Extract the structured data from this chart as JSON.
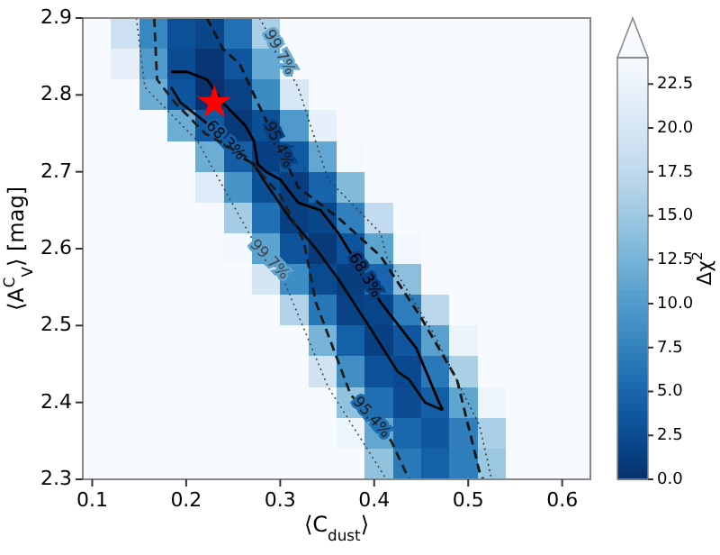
{
  "chart_data": {
    "type": "heatmap",
    "xlabel": "⟨C$_{dust}$⟩",
    "ylabel": "⟨A$^{C}$$_{V}$⟩ [mag]",
    "clabel": "Δχ$^{2}$",
    "xlim": [
      0.09,
      0.63
    ],
    "xticks": [
      0.1,
      0.2,
      0.3,
      0.4,
      0.5,
      0.6
    ],
    "ylim": [
      2.3,
      2.9
    ],
    "yticks": [
      2.3,
      2.4,
      2.5,
      2.6,
      2.7,
      2.8,
      2.9
    ],
    "clim": [
      0,
      24
    ],
    "cticks": [
      {
        "value": 0,
        "label": "0.0"
      },
      2.5,
      {
        "value": 5,
        "label": "5.0"
      },
      7.5,
      {
        "value": 10,
        "label": "10.0"
      },
      12.5,
      {
        "value": 15,
        "label": "15.0"
      },
      17.5,
      {
        "value": 20,
        "label": "20.0"
      },
      22.5
    ],
    "cells": [
      [
        24,
        19,
        8,
        3,
        2,
        6,
        16,
        24,
        24,
        24,
        24,
        24,
        24,
        24,
        24,
        24,
        24,
        24
      ],
      [
        24,
        22,
        10,
        2.5,
        0.5,
        3.5,
        11.6,
        24,
        24,
        24,
        24,
        24,
        24,
        24,
        24,
        24,
        24,
        24
      ],
      [
        24,
        24,
        11.8,
        3.4,
        0.1,
        1.7,
        8.4,
        20.2,
        24,
        24,
        24,
        24,
        24,
        24,
        24,
        24,
        24,
        24
      ],
      [
        24,
        24,
        24,
        11.9,
        3.8,
        0.8,
        2.8,
        9.9,
        22,
        24,
        24,
        24,
        24,
        24,
        24,
        24,
        24,
        24
      ],
      [
        24,
        24,
        24,
        24,
        11.9,
        4.2,
        1.5,
        3.8,
        11.2,
        23.6,
        24,
        24,
        24,
        24,
        24,
        24,
        24,
        24
      ],
      [
        24,
        24,
        24,
        24,
        20.9,
        9.3,
        2.8,
        1.3,
        4.8,
        13.4,
        24,
        24,
        24,
        24,
        24,
        24,
        24,
        24
      ],
      [
        24,
        24,
        24,
        24,
        24,
        15.5,
        5.9,
        1.4,
        1.9,
        7.4,
        18,
        24,
        24,
        24,
        24,
        24,
        24,
        24
      ],
      [
        24,
        24,
        24,
        24,
        24,
        23.4,
        10.9,
        3.3,
        0.8,
        3.3,
        10.9,
        23.4,
        24,
        24,
        24,
        24,
        24,
        24
      ],
      [
        24,
        24,
        24,
        24,
        24,
        24,
        19.8,
        8.6,
        2.4,
        1.2,
        5,
        13.9,
        24,
        24,
        24,
        24,
        24,
        24
      ],
      [
        24,
        24,
        24,
        24,
        24,
        24,
        24,
        16.5,
        6.6,
        1.7,
        1.9,
        7.1,
        17.3,
        24,
        24,
        24,
        24,
        24
      ],
      [
        24,
        24,
        24,
        24,
        24,
        24,
        24,
        24,
        12.6,
        4.5,
        1.5,
        3.5,
        10.6,
        22.6,
        24,
        24,
        24,
        24
      ],
      [
        24,
        24,
        24,
        24,
        24,
        24,
        24,
        24,
        19.4,
        8.7,
        3,
        2.3,
        6.7,
        16.1,
        24,
        24,
        24,
        24
      ],
      [
        24,
        24,
        24,
        24,
        24,
        24,
        24,
        24,
        24,
        14.3,
        5.9,
        2.6,
        4.2,
        11,
        22.7,
        24,
        24,
        24
      ],
      [
        24,
        24,
        24,
        24,
        24,
        24,
        24,
        24,
        24,
        22.7,
        11.3,
        5,
        3.6,
        7.3,
        16,
        24,
        24,
        24
      ],
      [
        24,
        24,
        24,
        24,
        24,
        24,
        24,
        24,
        24,
        24,
        14.2,
        6.8,
        4.5,
        7.2,
        14.9,
        24,
        24,
        24
      ]
    ],
    "series": [
      {
        "name": "68.3%",
        "type": "line",
        "line_style": "solid",
        "color": "#000000",
        "x": [
          0.184,
          0.201,
          0.222,
          0.239,
          0.263,
          0.272,
          0.276,
          0.285,
          0.3,
          0.319,
          0.343,
          0.362,
          0.372,
          0.407,
          0.445,
          0.469,
          0.473
        ],
        "values": [
          2.83,
          2.83,
          2.82,
          2.79,
          2.76,
          2.74,
          2.71,
          2.7,
          2.69,
          2.66,
          2.65,
          2.62,
          2.6,
          2.53,
          2.47,
          2.4,
          2.39
        ]
      },
      {
        "name": "68.3%",
        "type": "line",
        "line_style": "solid",
        "color": "#0a0a0a",
        "x": [
          0.184,
          0.194,
          0.225,
          0.257,
          0.272,
          0.282,
          0.31,
          0.338,
          0.362,
          0.394,
          0.425,
          0.437,
          0.454,
          0.473
        ],
        "values": [
          2.81,
          2.79,
          2.76,
          2.72,
          2.71,
          2.69,
          2.64,
          2.6,
          2.56,
          2.5,
          2.44,
          2.43,
          2.4,
          2.39
        ]
      },
      {
        "name": "95.4%",
        "type": "line",
        "line_style": "dashed",
        "color": "#141414",
        "x": [
          0.222,
          0.239,
          0.257,
          0.276,
          0.319,
          0.362,
          0.407,
          0.45,
          0.488,
          0.512,
          0.516
        ],
        "values": [
          2.9,
          2.86,
          2.84,
          2.79,
          2.68,
          2.64,
          2.59,
          2.51,
          2.43,
          2.31,
          2.3
        ]
      },
      {
        "name": "95.4%",
        "type": "line",
        "line_style": "dashed",
        "color": "#1e1e1e",
        "x": [
          0.166,
          0.169,
          0.188,
          0.22,
          0.263,
          0.3,
          0.325,
          0.338,
          0.375,
          0.418,
          0.437
        ],
        "values": [
          2.9,
          2.82,
          2.79,
          2.75,
          2.72,
          2.67,
          2.61,
          2.53,
          2.41,
          2.35,
          2.3
        ]
      },
      {
        "name": "99.7%",
        "type": "line",
        "line_style": "dotted",
        "color": "#3c3c3c",
        "x": [
          0.278,
          0.319,
          0.351,
          0.407,
          0.413,
          0.463,
          0.512,
          0.525
        ],
        "values": [
          2.9,
          2.81,
          2.69,
          2.62,
          2.59,
          2.49,
          2.37,
          2.3
        ]
      },
      {
        "name": "99.7%",
        "type": "line",
        "line_style": "dotted",
        "color": "#464646",
        "x": [
          0.147,
          0.156,
          0.188,
          0.212,
          0.244,
          0.276,
          0.3,
          0.351,
          0.413
        ],
        "values": [
          2.9,
          2.81,
          2.77,
          2.74,
          2.67,
          2.6,
          2.57,
          2.42,
          2.3
        ]
      },
      {
        "type": "scatter",
        "marker": "star",
        "color": "#ff0000",
        "x": [
          0.23
        ],
        "values": [
          2.79
        ]
      }
    ]
  }
}
